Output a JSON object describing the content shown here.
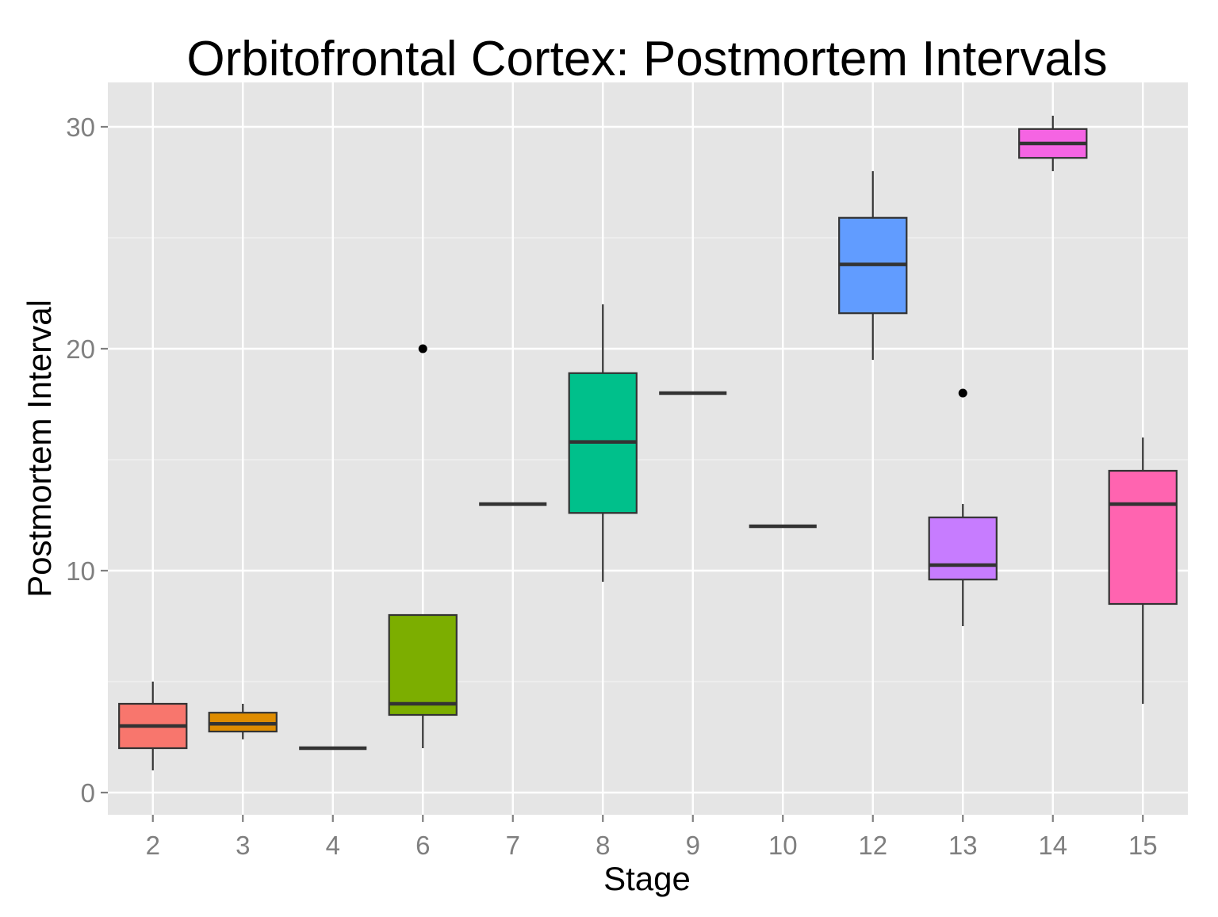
{
  "chart_data": {
    "type": "box",
    "title": "Orbitofrontal Cortex: Postmortem Intervals",
    "xlabel": "Stage",
    "ylabel": "Postmortem Interval",
    "ylim": [
      -1,
      32
    ],
    "yticks": [
      0,
      10,
      20,
      30
    ],
    "grid": true,
    "legend": "none",
    "panel_color": "#e5e5e5",
    "grid_color": "#ffffff",
    "box_stroke": "#333333",
    "categories": [
      "2",
      "3",
      "4",
      "6",
      "7",
      "8",
      "9",
      "10",
      "12",
      "13",
      "14",
      "15"
    ],
    "boxes": [
      {
        "stage": "2",
        "min": 1,
        "q1": 2,
        "median": 3,
        "q3": 4,
        "max": 5,
        "outliers": [],
        "color": "#F8766D"
      },
      {
        "stage": "3",
        "min": 2.4,
        "q1": 2.75,
        "median": 3.1,
        "q3": 3.6,
        "max": 4,
        "outliers": [],
        "color": "#DE8C00"
      },
      {
        "stage": "4",
        "min": 2,
        "q1": 2,
        "median": 2,
        "q3": 2,
        "max": 2,
        "outliers": [],
        "color": "#B79F00"
      },
      {
        "stage": "6",
        "min": 2,
        "q1": 3.5,
        "median": 4,
        "q3": 8,
        "max": 8,
        "outliers": [
          20
        ],
        "color": "#7CAE00"
      },
      {
        "stage": "7",
        "min": 13,
        "q1": 13,
        "median": 13,
        "q3": 13,
        "max": 13,
        "outliers": [],
        "color": "#00BA38"
      },
      {
        "stage": "8",
        "min": 9.5,
        "q1": 12.6,
        "median": 15.8,
        "q3": 18.9,
        "max": 22,
        "outliers": [],
        "color": "#00C08B"
      },
      {
        "stage": "9",
        "min": 18,
        "q1": 18,
        "median": 18,
        "q3": 18,
        "max": 18,
        "outliers": [],
        "color": "#00BFC4"
      },
      {
        "stage": "10",
        "min": 12,
        "q1": 12,
        "median": 12,
        "q3": 12,
        "max": 12,
        "outliers": [],
        "color": "#00B4F0"
      },
      {
        "stage": "12",
        "min": 19.5,
        "q1": 21.6,
        "median": 23.8,
        "q3": 25.9,
        "max": 28,
        "outliers": [],
        "color": "#619CFF"
      },
      {
        "stage": "13",
        "min": 7.5,
        "q1": 9.6,
        "median": 10.25,
        "q3": 12.4,
        "max": 13,
        "outliers": [
          18
        ],
        "color": "#C77CFF"
      },
      {
        "stage": "14",
        "min": 28,
        "q1": 28.6,
        "median": 29.25,
        "q3": 29.9,
        "max": 30.5,
        "outliers": [],
        "color": "#F564E3"
      },
      {
        "stage": "15",
        "min": 4,
        "q1": 8.5,
        "median": 13,
        "q3": 14.5,
        "max": 16,
        "outliers": [],
        "color": "#FF64B0"
      }
    ]
  }
}
